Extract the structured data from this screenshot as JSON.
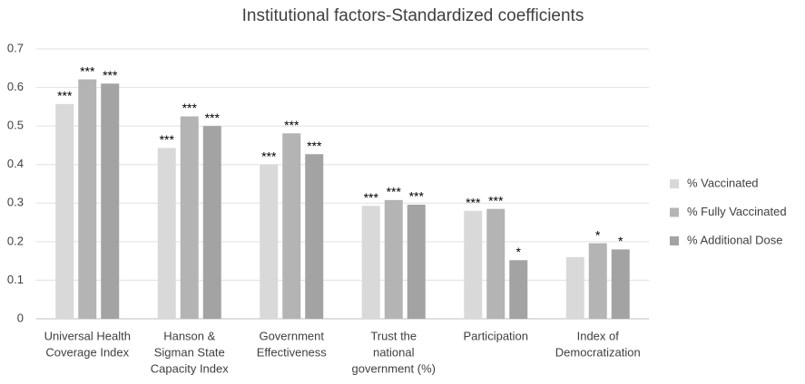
{
  "chart_data": {
    "type": "bar",
    "title": "Institutional factors-Standardized coefficients",
    "categories": [
      [
        "Universal Health",
        "Coverage Index"
      ],
      [
        "Hanson &",
        "Sigman State",
        "Capacity Index"
      ],
      [
        "Government",
        "Effectiveness"
      ],
      [
        "Trust the",
        "national",
        "government (%)"
      ],
      [
        "Participation"
      ],
      [
        "Index of",
        "Democratization"
      ]
    ],
    "series": [
      {
        "name": "% Vaccinated",
        "color": "#d9d9d9",
        "values": [
          0.557,
          0.443,
          0.4,
          0.293,
          0.28,
          0.16
        ],
        "annotations": [
          "***",
          "***",
          "***",
          "***",
          "***",
          null
        ]
      },
      {
        "name": "% Fully Vaccinated",
        "color": "#b4b4b4",
        "values": [
          0.621,
          0.525,
          0.481,
          0.308,
          0.285,
          0.196
        ],
        "annotations": [
          "***",
          "***",
          "***",
          "***",
          "***",
          "*"
        ]
      },
      {
        "name": "% Additional Dose",
        "color": "#a3a3a3",
        "values": [
          0.61,
          0.5,
          0.427,
          0.296,
          0.152,
          0.18
        ],
        "annotations": [
          "***",
          "***",
          "***",
          "***",
          "*",
          "*"
        ]
      }
    ],
    "ylim": [
      0,
      0.7
    ],
    "yticks": [
      0,
      0.1,
      0.2,
      0.3,
      0.4,
      0.5,
      0.6,
      0.7
    ],
    "grid": true,
    "legend": "right"
  }
}
